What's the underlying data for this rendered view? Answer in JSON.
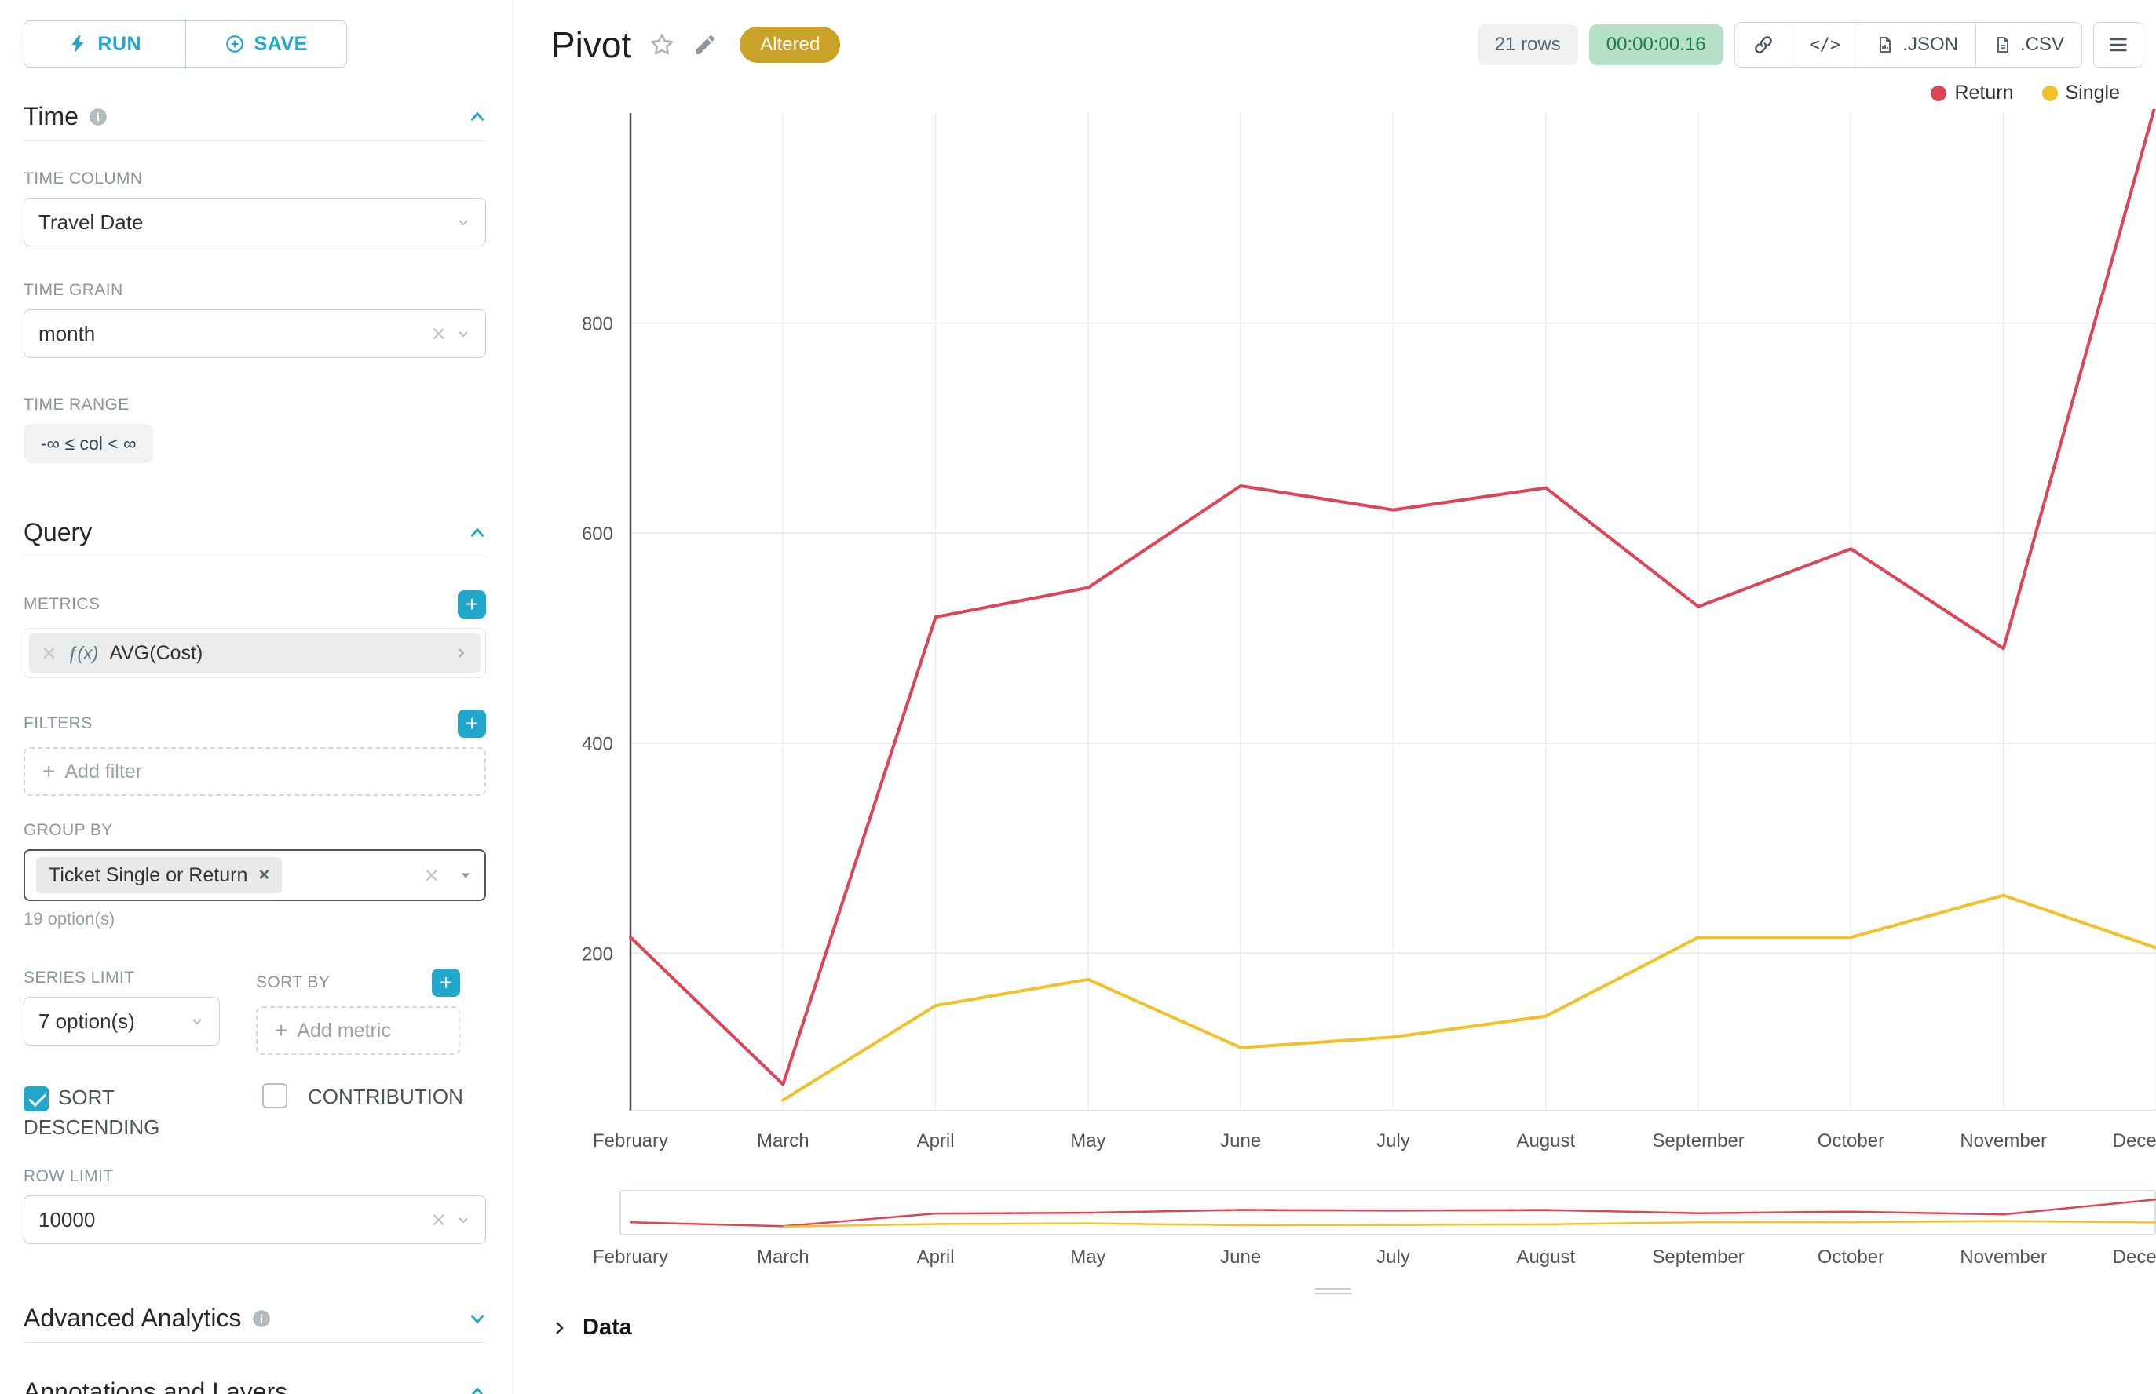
{
  "toolbar": {
    "run": "RUN",
    "save": "SAVE"
  },
  "sidebar": {
    "time": {
      "title": "Time",
      "time_column_label": "TIME COLUMN",
      "time_column_value": "Travel Date",
      "time_grain_label": "TIME GRAIN",
      "time_grain_value": "month",
      "time_range_label": "TIME RANGE",
      "time_range_value": "-∞ ≤ col < ∞"
    },
    "query": {
      "title": "Query",
      "metrics_label": "METRICS",
      "metric_fx": "ƒ(x)",
      "metric_value": "AVG(Cost)",
      "filters_label": "FILTERS",
      "add_filter": "Add filter",
      "group_by_label": "GROUP BY",
      "group_by_value": "Ticket Single or Return",
      "group_by_hint": "19 option(s)",
      "series_limit_label": "SERIES LIMIT",
      "series_limit_value": "7 option(s)",
      "sort_by_label": "SORT BY",
      "add_metric": "Add metric",
      "sort_descending_label": "SORT DESCENDING",
      "sort_descending_checked": true,
      "contribution_label": "CONTRIBUTION",
      "contribution_checked": false,
      "row_limit_label": "ROW LIMIT",
      "row_limit_value": "10000"
    },
    "advanced": {
      "title": "Advanced Analytics"
    },
    "annotations": {
      "title": "Annotations and Layers"
    }
  },
  "header": {
    "title": "Pivot",
    "altered_badge": "Altered",
    "rows_badge": "21 rows",
    "timer_badge": "00:00:00.16",
    "code_icon": "</>",
    "json_button": ".JSON",
    "csv_button": ".CSV"
  },
  "data_panel": {
    "title": "Data"
  },
  "chart_data": {
    "type": "line",
    "title": "",
    "x": [
      "February",
      "March",
      "April",
      "May",
      "June",
      "July",
      "August",
      "September",
      "October",
      "November",
      "December"
    ],
    "series": [
      {
        "name": "Return",
        "color": "#e04355",
        "values": [
          215,
          75,
          520,
          548,
          645,
          622,
          643,
          530,
          585,
          490,
          1010
        ]
      },
      {
        "name": "Single",
        "color": "#f2c029",
        "values": [
          null,
          60,
          150,
          175,
          110,
          120,
          140,
          215,
          215,
          255,
          205
        ]
      }
    ],
    "xlabel": "",
    "ylabel": "",
    "yticks": [
      200,
      400,
      600,
      800
    ],
    "ylim": [
      50,
      1000
    ],
    "grid": true,
    "legend_position": "top-right",
    "has_range_selector": true
  }
}
